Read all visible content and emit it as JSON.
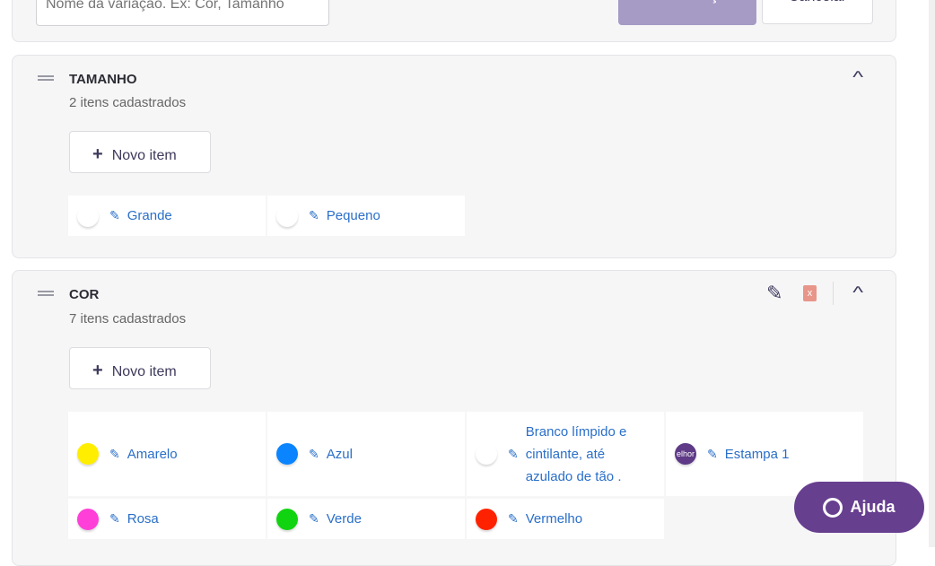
{
  "create": {
    "placeholder": "Nome da variação. Ex: Cor, Tamanho",
    "create_label": "Criar variação",
    "cancel_label": "Cancelar"
  },
  "variations": [
    {
      "title": "TAMANHO",
      "count": "2 itens cadastrados",
      "new_item": "Novo item",
      "items": [
        {
          "label": "Grande",
          "color": "#ffffff"
        },
        {
          "label": "Pequeno",
          "color": "#ffffff"
        }
      ]
    },
    {
      "title": "COR",
      "count": "7 itens cadastrados",
      "new_item": "Novo item",
      "items": [
        {
          "label": "Amarelo",
          "color": "#ffee00"
        },
        {
          "label": "Azul",
          "color": "#0a84ff"
        },
        {
          "label": "Branco límpido e cintilante, até azulado de tão .",
          "color": "#ffffff"
        },
        {
          "label": "Estampa 1",
          "color": "#5e3a87",
          "image_text": "elhor"
        },
        {
          "label": "Rosa",
          "color": "#ff3fd8"
        },
        {
          "label": "Verde",
          "color": "#11d411"
        },
        {
          "label": "Vermelho",
          "color": "#ff2200"
        }
      ]
    }
  ],
  "help": {
    "label": "Ajuda"
  },
  "colors": {
    "accent": "#673f8f",
    "link": "#2a6fc9",
    "delete": "#e8958a"
  }
}
